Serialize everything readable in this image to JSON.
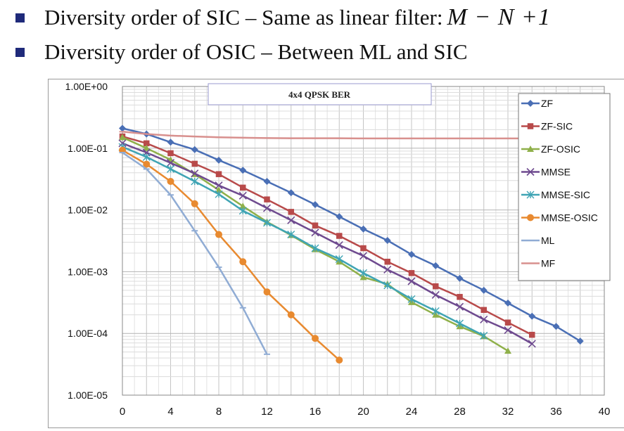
{
  "bullets": [
    {
      "text": "Diversity order of SIC – Same as linear filter:",
      "math": "M − N +1"
    },
    {
      "text": "Diversity order of OSIC – Between ML and SIC",
      "math": ""
    }
  ],
  "colors": {
    "bullet": "#1f2a7a"
  },
  "chart_data": {
    "type": "line",
    "title": "4x4 QPSK BER",
    "xlabel": "",
    "ylabel": "",
    "xlim": [
      0,
      40
    ],
    "ylim": [
      1e-05,
      1
    ],
    "yscale": "log",
    "x_ticks": [
      "0",
      "4",
      "8",
      "12",
      "16",
      "20",
      "24",
      "28",
      "32",
      "36",
      "40"
    ],
    "y_ticks": [
      "1.00E+00",
      "1.00E-01",
      "1.00E-02",
      "1.00E-03",
      "1.00E-04",
      "1.00E-05"
    ],
    "grid": true,
    "legend_position": "right",
    "series": [
      {
        "name": "ZF",
        "color": "#4a6fb5",
        "marker": "diamond",
        "x": [
          0,
          2,
          4,
          6,
          8,
          10,
          12,
          14,
          16,
          18,
          20,
          22,
          24,
          26,
          28,
          30,
          32,
          34,
          36,
          38
        ],
        "y": [
          0.21,
          0.17,
          0.125,
          0.095,
          0.064,
          0.044,
          0.029,
          0.019,
          0.0122,
          0.0078,
          0.0049,
          0.0032,
          0.0019,
          0.00125,
          0.00078,
          0.0005,
          0.00031,
          0.00019,
          0.00013,
          7.5e-05
        ]
      },
      {
        "name": "ZF-SIC",
        "color": "#b84a4a",
        "marker": "square",
        "x": [
          0,
          2,
          4,
          6,
          8,
          10,
          12,
          14,
          16,
          18,
          20,
          22,
          24,
          26,
          28,
          30,
          32,
          34
        ],
        "y": [
          0.155,
          0.12,
          0.083,
          0.056,
          0.038,
          0.023,
          0.0148,
          0.0093,
          0.0056,
          0.0038,
          0.0024,
          0.00145,
          0.00095,
          0.00058,
          0.00039,
          0.00024,
          0.00015,
          9.5e-05
        ]
      },
      {
        "name": "ZF-OSIC",
        "color": "#8fb04a",
        "marker": "triangle",
        "x": [
          0,
          2,
          4,
          6,
          8,
          10,
          12,
          14,
          16,
          18,
          20,
          22,
          24,
          26,
          28,
          30,
          32
        ],
        "y": [
          0.15,
          0.1,
          0.065,
          0.038,
          0.021,
          0.0115,
          0.0064,
          0.0039,
          0.0023,
          0.00145,
          0.00081,
          0.00063,
          0.00032,
          0.0002,
          0.00013,
          9e-05,
          5.2e-05
        ]
      },
      {
        "name": "MMSE",
        "color": "#6e4a8f",
        "marker": "x",
        "x": [
          0,
          2,
          4,
          6,
          8,
          10,
          12,
          14,
          16,
          18,
          20,
          22,
          24,
          26,
          28,
          30,
          32,
          34
        ],
        "y": [
          0.12,
          0.085,
          0.058,
          0.039,
          0.025,
          0.017,
          0.0107,
          0.0068,
          0.0043,
          0.0027,
          0.0018,
          0.00108,
          0.0007,
          0.00042,
          0.00027,
          0.000168,
          0.000113,
          6.8e-05
        ]
      },
      {
        "name": "MMSE-SIC",
        "color": "#3fa4b4",
        "marker": "star",
        "x": [
          0,
          2,
          4,
          6,
          8,
          10,
          12,
          14,
          16,
          18,
          20,
          22,
          24,
          26,
          28,
          30
        ],
        "y": [
          0.105,
          0.072,
          0.046,
          0.029,
          0.018,
          0.0097,
          0.0062,
          0.004,
          0.0024,
          0.0016,
          0.00095,
          0.0006,
          0.00036,
          0.00023,
          0.000145,
          9.2e-05
        ]
      },
      {
        "name": "MMSE-OSIC",
        "color": "#e88a30",
        "marker": "circle",
        "x": [
          0,
          2,
          4,
          6,
          8,
          10,
          12,
          14,
          16,
          18
        ],
        "y": [
          0.093,
          0.055,
          0.029,
          0.0126,
          0.004,
          0.00145,
          0.00047,
          0.0002,
          8.3e-05,
          3.7e-05
        ]
      },
      {
        "name": "ML",
        "color": "#90acd4",
        "marker": "dash",
        "x": [
          0,
          2,
          4,
          6,
          8,
          10,
          12
        ],
        "y": [
          0.085,
          0.046,
          0.0175,
          0.0046,
          0.00118,
          0.00026,
          4.6e-05
        ]
      },
      {
        "name": "MF",
        "color": "#d8908e",
        "marker": "dash",
        "x": [
          0,
          2,
          4,
          6,
          8,
          10,
          12,
          14,
          16,
          18,
          20,
          22,
          24,
          26,
          28,
          30,
          32,
          34,
          36,
          38,
          40
        ],
        "y": [
          0.185,
          0.17,
          0.16,
          0.155,
          0.15,
          0.148,
          0.146,
          0.145,
          0.145,
          0.145,
          0.144,
          0.144,
          0.144,
          0.144,
          0.144,
          0.144,
          0.144,
          0.144,
          0.144,
          0.144,
          0.144
        ]
      }
    ]
  }
}
